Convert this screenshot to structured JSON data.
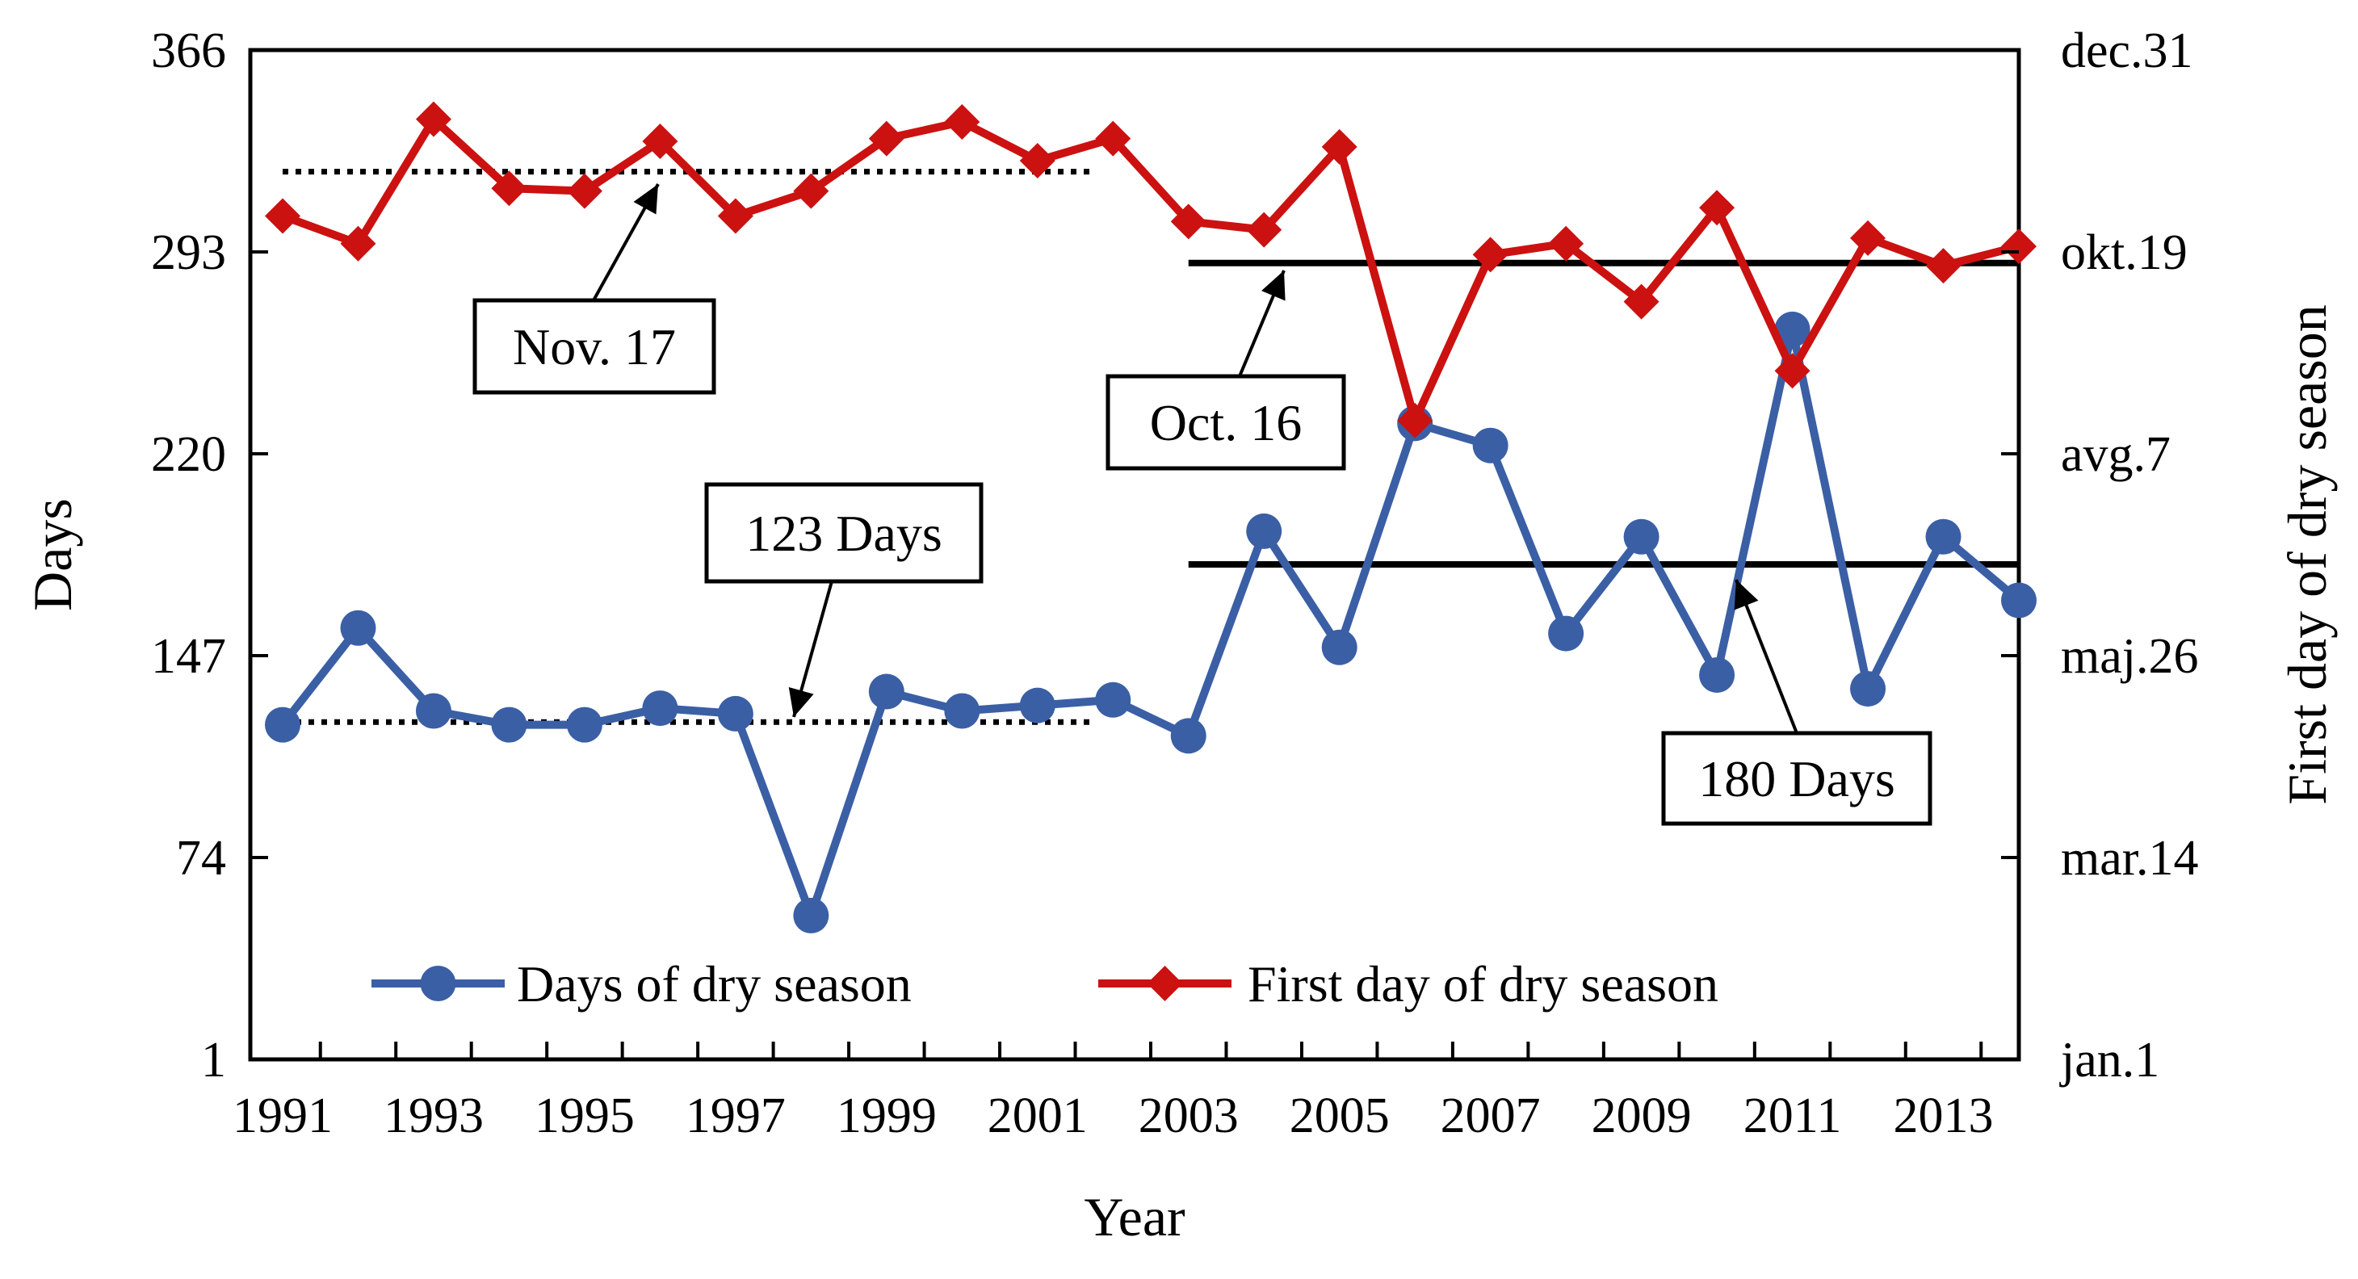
{
  "chart_data": {
    "type": "line",
    "x": [
      1991,
      1992,
      1993,
      1994,
      1995,
      1996,
      1997,
      1998,
      1999,
      2000,
      2001,
      2002,
      2003,
      2004,
      2005,
      2006,
      2007,
      2008,
      2009,
      2010,
      2011,
      2012,
      2013,
      2014
    ],
    "x_tick_labels": [
      "1991",
      "1993",
      "1995",
      "1997",
      "1999",
      "2001",
      "2003",
      "2005",
      "2007",
      "2009",
      "2011",
      "2013"
    ],
    "xlabel": "Year",
    "ylabel": "Days",
    "ylabel_right": "First day of dry season",
    "ylim": [
      1,
      366
    ],
    "y_ticks": [
      1,
      74,
      147,
      220,
      293,
      366
    ],
    "y_tick_labels": [
      "1",
      "74",
      "147",
      "220",
      "293",
      "366"
    ],
    "y2_tick_labels": [
      "jan.1",
      "mar.14",
      "maj.26",
      "avg.7",
      "okt.19",
      "dec.31"
    ],
    "grid": false,
    "legend_placement": "bottom",
    "series": [
      {
        "name": "Days of dry season",
        "axis": "left",
        "color": "#3b5fa5",
        "marker": "circle",
        "values": [
          122,
          157,
          127,
          122,
          122,
          128,
          126,
          53,
          134,
          127,
          129,
          131,
          118,
          192,
          150,
          231,
          223,
          155,
          190,
          140,
          265,
          135,
          190,
          167
        ]
      },
      {
        "name": "First day of dry season",
        "axis": "right",
        "color": "#cc1111",
        "marker": "diamond",
        "values": [
          306,
          296,
          341,
          316,
          315,
          333,
          306,
          315,
          334,
          340,
          326,
          334,
          304,
          301,
          331,
          232,
          292,
          296,
          275,
          309,
          250,
          298,
          288,
          295
        ]
      }
    ],
    "reference_lines": [
      {
        "label": "Nov. 17",
        "y": 322,
        "x_range": [
          1991,
          2001.7
        ],
        "style": "dotted"
      },
      {
        "label": "123 Days",
        "y": 123,
        "x_range": [
          1991,
          2001.7
        ],
        "style": "dotted"
      },
      {
        "label": "Oct. 16",
        "y": 289,
        "x_range": [
          2003,
          2014
        ],
        "style": "solid"
      },
      {
        "label": "180 Days",
        "y": 180,
        "x_range": [
          2003,
          2014
        ],
        "style": "solid"
      }
    ],
    "annotations": [
      "Nov. 17",
      "123 Days",
      "Oct. 16",
      "180 Days"
    ]
  }
}
